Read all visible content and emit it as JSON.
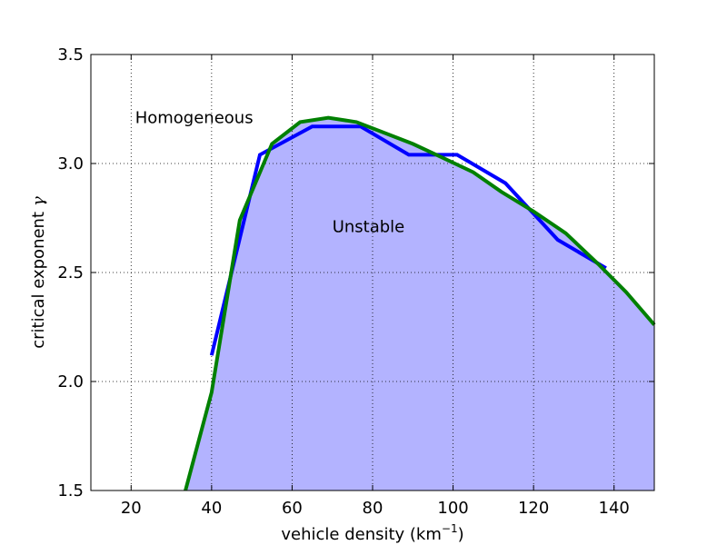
{
  "chart_data": {
    "type": "line",
    "title": "",
    "xlabel": "vehicle density (km",
    "xlabel_sup": "−1",
    "xlabel_suffix": ")",
    "ylabel": "critical exponent",
    "ylabel_symbol": "γ",
    "xlim": [
      10,
      150
    ],
    "ylim": [
      1.5,
      3.5
    ],
    "xticks": [
      20,
      40,
      60,
      80,
      100,
      120,
      140
    ],
    "yticks": [
      1.5,
      2.0,
      2.5,
      3.0,
      3.5
    ],
    "xtick_labels": [
      "20",
      "40",
      "60",
      "80",
      "100",
      "120",
      "140"
    ],
    "ytick_labels": [
      "1.5",
      "2.0",
      "2.5",
      "3.0",
      "3.5"
    ],
    "grid": true,
    "annotations": [
      {
        "text": "Homogeneous",
        "x": 21,
        "y": 3.21
      },
      {
        "text": "Unstable",
        "x": 70,
        "y": 2.71
      }
    ],
    "series": [
      {
        "color": "#0000ff",
        "x": [
          40,
          52,
          65,
          77,
          89,
          101,
          113,
          126,
          138
        ],
        "y": [
          2.12,
          3.04,
          3.17,
          3.17,
          3.04,
          3.04,
          2.91,
          2.65,
          2.52
        ]
      },
      {
        "color": "#008000",
        "x": [
          33.5,
          40,
          47,
          55,
          62,
          69,
          76,
          83,
          90,
          97,
          105,
          112,
          120,
          128,
          136,
          143,
          150
        ],
        "y": [
          1.5,
          1.95,
          2.74,
          3.09,
          3.19,
          3.21,
          3.19,
          3.14,
          3.09,
          3.03,
          2.96,
          2.87,
          2.78,
          2.68,
          2.54,
          2.41,
          2.26
        ]
      }
    ],
    "fill": {
      "color": "#b3b3ff",
      "under_series": 1
    }
  }
}
